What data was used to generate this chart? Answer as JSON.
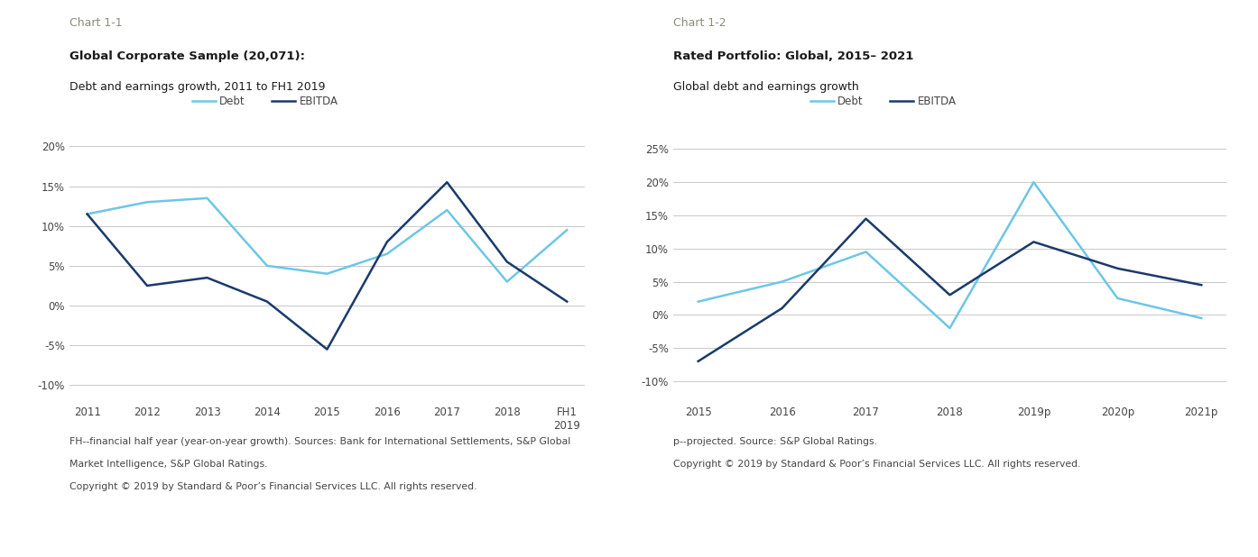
{
  "chart1": {
    "title_label": "Chart 1-1",
    "bold_title": "Global Corporate Sample (20,071):",
    "subtitle": "Debt and earnings growth, 2011 to FH1 2019",
    "x_labels": [
      "2011",
      "2012",
      "2013",
      "2014",
      "2015",
      "2016",
      "2017",
      "2018",
      "FH1\n2019"
    ],
    "debt_values": [
      11.5,
      13.0,
      13.5,
      5.0,
      4.0,
      6.5,
      12.0,
      3.0,
      9.5
    ],
    "ebitda_values": [
      11.5,
      2.5,
      3.5,
      0.5,
      -5.5,
      8.0,
      15.5,
      5.5,
      0.5
    ],
    "ylim": [
      -12,
      23
    ],
    "yticks": [
      -10,
      -5,
      0,
      5,
      10,
      15,
      20
    ],
    "footnote1": "FH--financial half year (year-on-year growth). Sources: Bank for International Settlements, S&P Global",
    "footnote2": "Market Intelligence, S&P Global Ratings.",
    "footnote3": "Copyright © 2019 by Standard & Poor’s Financial Services LLC. All rights reserved."
  },
  "chart2": {
    "title_label": "Chart 1-2",
    "bold_title": "Rated Portfolio: Global, 2015– 2021",
    "subtitle": "Global debt and earnings growth",
    "x_labels": [
      "2015",
      "2016",
      "2017",
      "2018",
      "2019p",
      "2020p",
      "2021p"
    ],
    "debt_values": [
      2.0,
      5.0,
      9.5,
      -2.0,
      20.0,
      2.5,
      -0.5
    ],
    "ebitda_values": [
      -7.0,
      1.0,
      14.5,
      3.0,
      11.0,
      7.0,
      4.5
    ],
    "ylim": [
      -13,
      29
    ],
    "yticks": [
      -10,
      -5,
      0,
      5,
      10,
      15,
      20,
      25
    ],
    "footnote1": "p--projected. Source: S&P Global Ratings.",
    "footnote2": "Copyright © 2019 by Standard & Poor’s Financial Services LLC. All rights reserved."
  },
  "debt_color": "#6ec6e6",
  "ebitda_color": "#1a3a6b",
  "title_label_color": "#8c8c7a",
  "grid_color": "#c8c8c8",
  "bg_color": "#ffffff",
  "line_width": 1.8,
  "legend_fontsize": 8.5,
  "tick_fontsize": 8.5,
  "footnote_fontsize": 7.8,
  "title_label_fontsize": 9,
  "bold_title_fontsize": 9.5,
  "subtitle_fontsize": 9
}
